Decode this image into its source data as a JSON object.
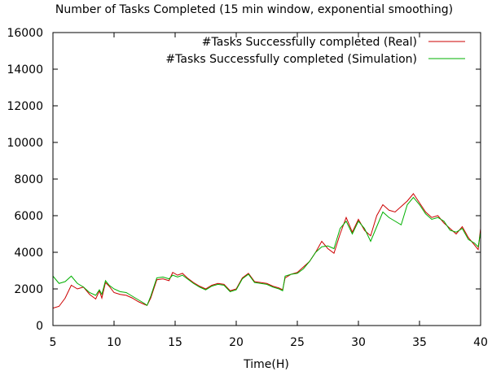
{
  "chart_data": {
    "type": "line",
    "title": "Number of Tasks Completed (15 min window, exponential smoothing)",
    "xlabel": "Time(H)",
    "ylabel": "",
    "xlim": [
      5,
      40
    ],
    "ylim": [
      0,
      16000
    ],
    "x_ticks": [
      5,
      10,
      15,
      20,
      25,
      30,
      35,
      40
    ],
    "y_ticks": [
      0,
      2000,
      4000,
      6000,
      8000,
      10000,
      12000,
      14000,
      16000
    ],
    "grid": false,
    "legend_position": "top-right",
    "series": [
      {
        "name": "#Tasks Successfully completed (Real)",
        "color": "#cc0000",
        "points": [
          [
            5.0,
            950
          ],
          [
            5.5,
            1050
          ],
          [
            6.0,
            1500
          ],
          [
            6.5,
            2200
          ],
          [
            7.0,
            2000
          ],
          [
            7.5,
            2100
          ],
          [
            8.0,
            1700
          ],
          [
            8.5,
            1450
          ],
          [
            8.8,
            1900
          ],
          [
            9.0,
            1500
          ],
          [
            9.3,
            2350
          ],
          [
            9.6,
            2150
          ],
          [
            10.0,
            1800
          ],
          [
            10.5,
            1700
          ],
          [
            11.0,
            1650
          ],
          [
            11.5,
            1500
          ],
          [
            12.0,
            1300
          ],
          [
            12.5,
            1150
          ],
          [
            12.7,
            1100
          ],
          [
            13.0,
            1500
          ],
          [
            13.5,
            2500
          ],
          [
            14.0,
            2550
          ],
          [
            14.5,
            2450
          ],
          [
            14.8,
            2900
          ],
          [
            15.2,
            2750
          ],
          [
            15.6,
            2850
          ],
          [
            16.0,
            2600
          ],
          [
            16.5,
            2350
          ],
          [
            17.0,
            2150
          ],
          [
            17.5,
            2000
          ],
          [
            18.0,
            2200
          ],
          [
            18.5,
            2300
          ],
          [
            19.0,
            2250
          ],
          [
            19.5,
            1900
          ],
          [
            20.0,
            2000
          ],
          [
            20.5,
            2600
          ],
          [
            21.0,
            2850
          ],
          [
            21.5,
            2400
          ],
          [
            22.0,
            2350
          ],
          [
            22.5,
            2300
          ],
          [
            23.0,
            2150
          ],
          [
            23.5,
            2050
          ],
          [
            23.8,
            1950
          ],
          [
            24.0,
            2600
          ],
          [
            24.5,
            2800
          ],
          [
            25.0,
            2900
          ],
          [
            25.5,
            3200
          ],
          [
            26.0,
            3500
          ],
          [
            26.5,
            4000
          ],
          [
            27.0,
            4600
          ],
          [
            27.5,
            4200
          ],
          [
            28.0,
            3950
          ],
          [
            28.5,
            5000
          ],
          [
            29.0,
            5900
          ],
          [
            29.5,
            5100
          ],
          [
            30.0,
            5800
          ],
          [
            30.5,
            5200
          ],
          [
            31.0,
            4900
          ],
          [
            31.5,
            6000
          ],
          [
            32.0,
            6600
          ],
          [
            32.5,
            6300
          ],
          [
            33.0,
            6200
          ],
          [
            33.5,
            6500
          ],
          [
            34.0,
            6800
          ],
          [
            34.5,
            7200
          ],
          [
            35.0,
            6700
          ],
          [
            35.5,
            6200
          ],
          [
            36.0,
            5900
          ],
          [
            36.5,
            6000
          ],
          [
            37.0,
            5600
          ],
          [
            37.5,
            5300
          ],
          [
            38.0,
            5000
          ],
          [
            38.5,
            5400
          ],
          [
            39.0,
            4800
          ],
          [
            39.5,
            4400
          ],
          [
            39.8,
            4150
          ],
          [
            40.0,
            5300
          ]
        ]
      },
      {
        "name": "#Tasks Successfully completed (Simulation)",
        "color": "#00b000",
        "points": [
          [
            5.0,
            2700
          ],
          [
            5.5,
            2300
          ],
          [
            6.0,
            2400
          ],
          [
            6.5,
            2700
          ],
          [
            7.0,
            2300
          ],
          [
            7.5,
            2100
          ],
          [
            8.0,
            1800
          ],
          [
            8.5,
            1650
          ],
          [
            8.8,
            1950
          ],
          [
            9.0,
            1700
          ],
          [
            9.3,
            2450
          ],
          [
            9.6,
            2200
          ],
          [
            10.0,
            2000
          ],
          [
            10.5,
            1850
          ],
          [
            11.0,
            1800
          ],
          [
            11.5,
            1600
          ],
          [
            12.0,
            1400
          ],
          [
            12.5,
            1200
          ],
          [
            12.7,
            1100
          ],
          [
            13.0,
            1600
          ],
          [
            13.5,
            2600
          ],
          [
            14.0,
            2650
          ],
          [
            14.5,
            2550
          ],
          [
            14.8,
            2750
          ],
          [
            15.2,
            2650
          ],
          [
            15.6,
            2750
          ],
          [
            16.0,
            2550
          ],
          [
            16.5,
            2300
          ],
          [
            17.0,
            2100
          ],
          [
            17.5,
            1950
          ],
          [
            18.0,
            2150
          ],
          [
            18.5,
            2250
          ],
          [
            19.0,
            2200
          ],
          [
            19.5,
            1850
          ],
          [
            20.0,
            1950
          ],
          [
            20.5,
            2550
          ],
          [
            21.0,
            2800
          ],
          [
            21.5,
            2350
          ],
          [
            22.0,
            2300
          ],
          [
            22.5,
            2250
          ],
          [
            23.0,
            2100
          ],
          [
            23.5,
            2000
          ],
          [
            23.8,
            1900
          ],
          [
            24.0,
            2700
          ],
          [
            24.5,
            2800
          ],
          [
            25.0,
            2850
          ],
          [
            25.5,
            3100
          ],
          [
            26.0,
            3500
          ],
          [
            26.5,
            4000
          ],
          [
            27.0,
            4300
          ],
          [
            27.5,
            4350
          ],
          [
            28.0,
            4200
          ],
          [
            28.5,
            5300
          ],
          [
            29.0,
            5700
          ],
          [
            29.5,
            5000
          ],
          [
            30.0,
            5700
          ],
          [
            30.5,
            5300
          ],
          [
            31.0,
            4600
          ],
          [
            31.5,
            5400
          ],
          [
            32.0,
            6200
          ],
          [
            32.5,
            5900
          ],
          [
            33.0,
            5700
          ],
          [
            33.5,
            5500
          ],
          [
            34.0,
            6600
          ],
          [
            34.5,
            7000
          ],
          [
            35.0,
            6600
          ],
          [
            35.5,
            6100
          ],
          [
            36.0,
            5800
          ],
          [
            36.5,
            5900
          ],
          [
            37.0,
            5700
          ],
          [
            37.5,
            5200
          ],
          [
            38.0,
            5100
          ],
          [
            38.5,
            5300
          ],
          [
            39.0,
            4700
          ],
          [
            39.5,
            4500
          ],
          [
            39.8,
            4300
          ],
          [
            40.0,
            5100
          ]
        ]
      }
    ]
  }
}
